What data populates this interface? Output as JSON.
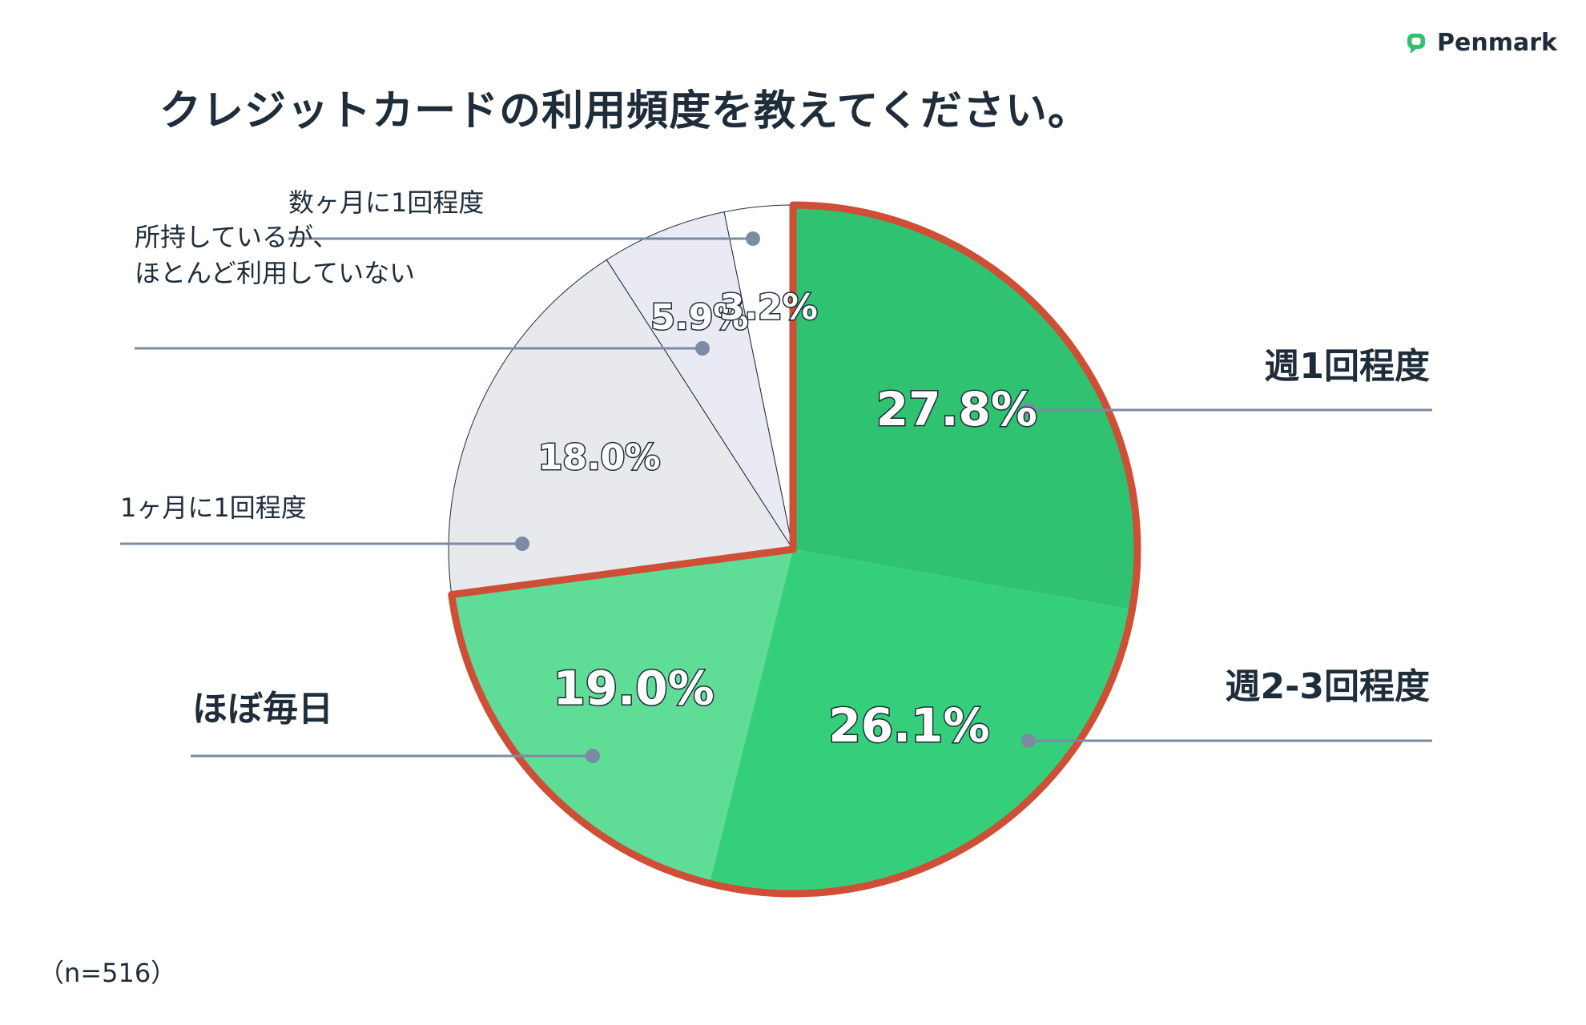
{
  "brand": {
    "name": "Penmark",
    "icon": "speech-bubble-icon",
    "icon_color": "#2ec271"
  },
  "chart_data": {
    "type": "pie",
    "title": "クレジットカードの利用頻度を教えてください。",
    "note": "（n=516）",
    "slices": [
      {
        "label": "週1回程度",
        "value": 27.8,
        "value_label": "27.8%",
        "color": "#2ec271",
        "highlight": true
      },
      {
        "label": "週2-3回程度",
        "value": 26.1,
        "value_label": "26.1%",
        "color": "#35cf7b",
        "highlight": true
      },
      {
        "label": "ほぼ毎日",
        "value": 19.0,
        "value_label": "19.0%",
        "color": "#5fdc96",
        "highlight": true
      },
      {
        "label": "1ヶ月に1回程度",
        "value": 18.0,
        "value_label": "18.0%",
        "color": "#e8e9ed",
        "highlight": false
      },
      {
        "label": "所持しているが、\nほとんど利用していない",
        "value": 5.9,
        "value_label": "5.9%",
        "color": "#e9eaf4",
        "highlight": false
      },
      {
        "label": "数ヶ月に1回程度",
        "value": 3.2,
        "value_label": "3.2%",
        "color": "#ffffff",
        "highlight": false
      }
    ],
    "highlight_color": "#cf4e36",
    "leader_color": "#7b8ba3"
  }
}
